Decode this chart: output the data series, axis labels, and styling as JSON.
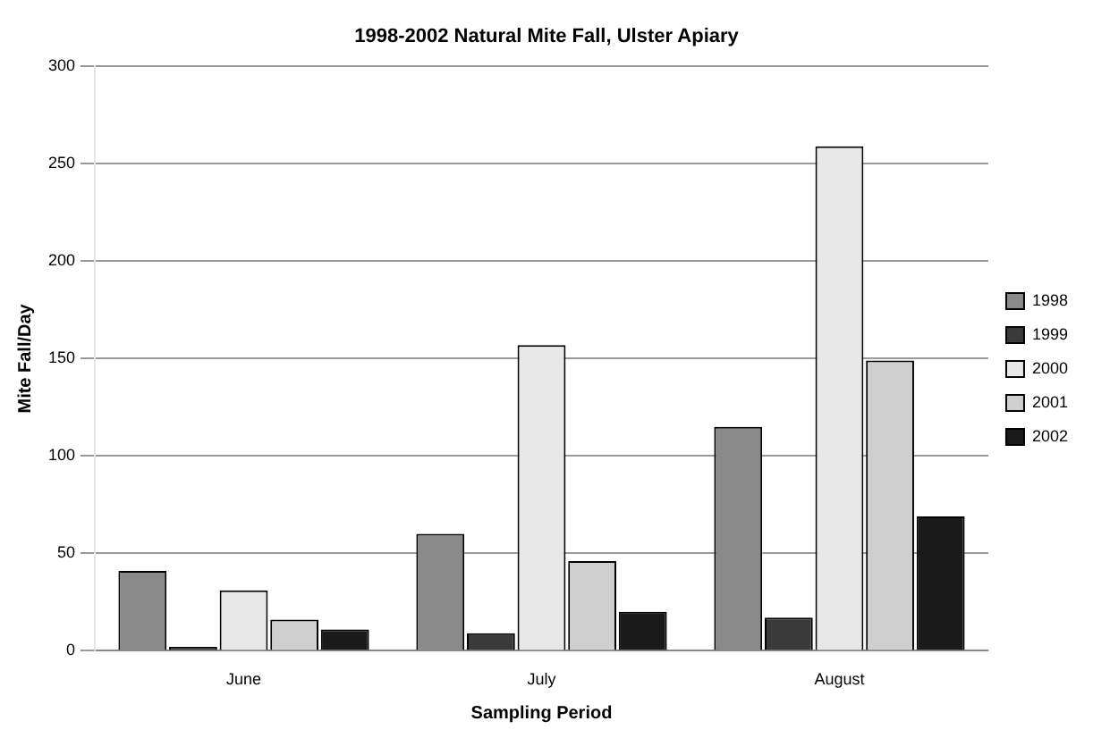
{
  "chart_data": {
    "type": "bar",
    "title": "1998-2002 Natural Mite Fall, Ulster Apiary",
    "xlabel": "Sampling Period",
    "ylabel": "Mite Fall/Day",
    "categories": [
      "June",
      "July",
      "August"
    ],
    "series": [
      {
        "name": "1998",
        "color": "#8a8a8a",
        "values": [
          41,
          60,
          115
        ]
      },
      {
        "name": "1999",
        "color": "#3a3a3a",
        "values": [
          2,
          9,
          17
        ]
      },
      {
        "name": "2000",
        "color": "#e8e8e8",
        "values": [
          31,
          157,
          259
        ]
      },
      {
        "name": "2001",
        "color": "#cfcfcf",
        "values": [
          16,
          46,
          149
        ]
      },
      {
        "name": "2002",
        "color": "#1a1a1a",
        "values": [
          11,
          20,
          69
        ]
      }
    ],
    "ylim": [
      0,
      300
    ],
    "yticks": [
      0,
      50,
      100,
      150,
      200,
      250,
      300
    ],
    "grid": "y",
    "legend": "right"
  }
}
